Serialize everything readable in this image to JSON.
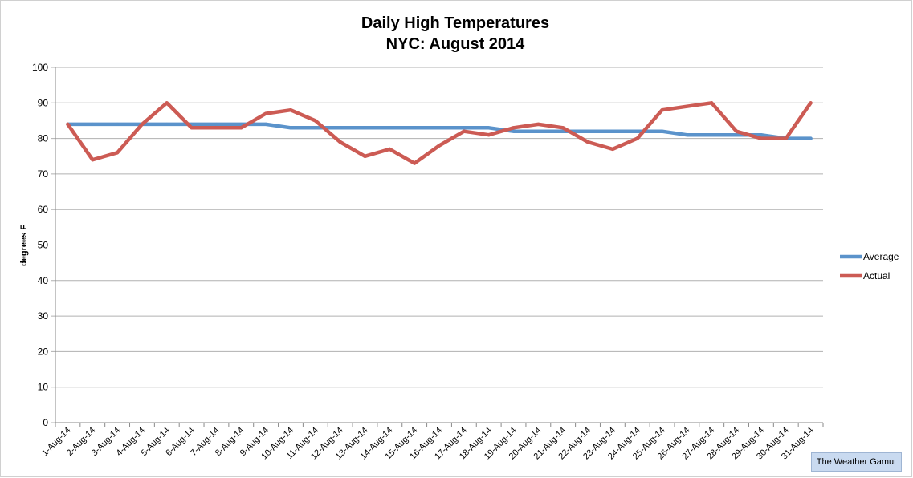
{
  "chart_data": {
    "type": "line",
    "title": "Daily High Temperatures",
    "subtitle": "NYC: August 2014",
    "xlabel": "",
    "ylabel": "degrees F",
    "ylim": [
      0,
      100
    ],
    "yticks": [
      0,
      10,
      20,
      30,
      40,
      50,
      60,
      70,
      80,
      90,
      100
    ],
    "grid": "horizontal",
    "legend_position": "right",
    "categories": [
      "1-Aug-14",
      "2-Aug-14",
      "3-Aug-14",
      "4-Aug-14",
      "5-Aug-14",
      "6-Aug-14",
      "7-Aug-14",
      "8-Aug-14",
      "9-Aug-14",
      "10-Aug-14",
      "11-Aug-14",
      "12-Aug-14",
      "13-Aug-14",
      "14-Aug-14",
      "15-Aug-14",
      "16-Aug-14",
      "17-Aug-14",
      "18-Aug-14",
      "19-Aug-14",
      "20-Aug-14",
      "21-Aug-14",
      "22-Aug-14",
      "23-Aug-14",
      "24-Aug-14",
      "25-Aug-14",
      "26-Aug-14",
      "27-Aug-14",
      "28-Aug-14",
      "29-Aug-14",
      "30-Aug-14",
      "31-Aug-14"
    ],
    "series": [
      {
        "name": "Average",
        "color": "#5b93cb",
        "values": [
          84,
          84,
          84,
          84,
          84,
          84,
          84,
          84,
          84,
          83,
          83,
          83,
          83,
          83,
          83,
          83,
          83,
          83,
          82,
          82,
          82,
          82,
          82,
          82,
          82,
          81,
          81,
          81,
          81,
          80,
          80
        ]
      },
      {
        "name": "Actual",
        "color": "#cc5b54",
        "values": [
          84,
          74,
          76,
          84,
          90,
          83,
          83,
          83,
          87,
          88,
          85,
          79,
          75,
          77,
          73,
          78,
          82,
          81,
          83,
          84,
          83,
          79,
          77,
          80,
          88,
          89,
          90,
          82,
          80,
          80,
          90
        ]
      }
    ]
  },
  "source_label": "The Weather Gamut"
}
